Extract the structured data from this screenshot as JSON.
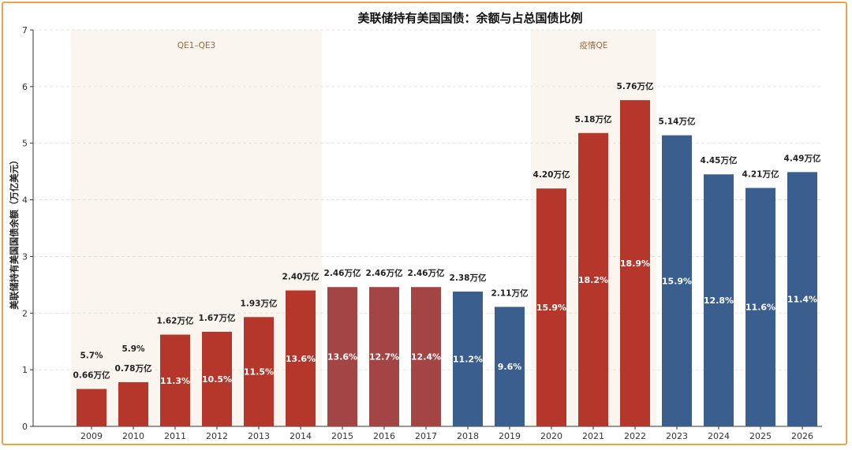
{
  "chart_data": {
    "type": "bar",
    "title": "美联储持有美国国债：余额与占总国债比例",
    "xlabel": "",
    "ylabel": "美联储持有美国国债余额（万亿美元）",
    "ylim": [
      0,
      7
    ],
    "yticks": [
      0,
      1,
      2,
      3,
      4,
      5,
      6,
      7
    ],
    "grid": true,
    "categories": [
      "2009",
      "2010",
      "2011",
      "2012",
      "2013",
      "2014",
      "2015",
      "2016",
      "2017",
      "2018",
      "2019",
      "2020",
      "2021",
      "2022",
      "2023",
      "2024",
      "2025",
      "2026"
    ],
    "values": [
      0.66,
      0.78,
      1.62,
      1.67,
      1.93,
      2.4,
      2.46,
      2.46,
      2.46,
      2.38,
      2.11,
      4.2,
      5.18,
      5.76,
      5.14,
      4.45,
      4.21,
      4.49
    ],
    "value_labels": [
      "0.66万亿",
      "0.78万亿",
      "1.62万亿",
      "1.67万亿",
      "1.93万亿",
      "2.40万亿",
      "2.46万亿",
      "2.46万亿",
      "2.46万亿",
      "2.38万亿",
      "2.11万亿",
      "4.20万亿",
      "5.18万亿",
      "5.76万亿",
      "5.14万亿",
      "4.45万亿",
      "4.21万亿",
      "4.49万亿"
    ],
    "share_labels": [
      "5.7%",
      "5.9%",
      "11.3%",
      "10.5%",
      "11.5%",
      "13.6%",
      "13.6%",
      "12.7%",
      "12.4%",
      "11.2%",
      "9.6%",
      "15.9%",
      "18.2%",
      "18.9%",
      "15.9%",
      "12.8%",
      "11.6%",
      "11.4%"
    ],
    "bar_colors": [
      "#b5362a",
      "#b5362a",
      "#b5362a",
      "#b5362a",
      "#b5362a",
      "#b5362a",
      "#a44545",
      "#a44545",
      "#a44545",
      "#3a5f8f",
      "#3a5f8f",
      "#b5362a",
      "#b5362a",
      "#b5362a",
      "#3a5f8f",
      "#3a5f8f",
      "#3a5f8f",
      "#3a5f8f"
    ],
    "label_above_colors": [
      "#3a5f8f"
    ],
    "shaded_periods": [
      {
        "label": "QE1–QE3",
        "start": "2009",
        "end": "2014"
      },
      {
        "label": "疫情QE",
        "start": "2020",
        "end": "2022"
      }
    ]
  },
  "colors": {
    "frame": "#f0a24a",
    "band": "#faf5ef",
    "grid": "#dddddd",
    "axis": "#333333"
  }
}
